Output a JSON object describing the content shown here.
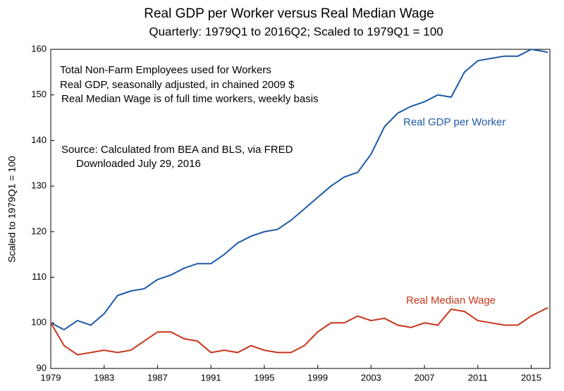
{
  "chart_data": {
    "type": "line",
    "title": "Real GDP per Worker versus Real Median Wage",
    "subtitle": "Quarterly:  1979Q1 to 2016Q2; Scaled to 1979Q1 = 100",
    "y_label": "Scaled to 1979Q1 = 100",
    "annotations": [
      "Total Non-Farm Employees used for Workers",
      "Real GDP, seasonally adjusted, in chained 2009 $",
      "Real Median Wage is of full time workers, weekly basis",
      "Source:  Calculated from BEA and BLS, via FRED",
      "Downloaded July 29, 2016"
    ],
    "x": [
      1979,
      1980,
      1981,
      1982,
      1983,
      1984,
      1985,
      1986,
      1987,
      1988,
      1989,
      1990,
      1991,
      1992,
      1993,
      1994,
      1995,
      1996,
      1997,
      1998,
      1999,
      2000,
      2001,
      2002,
      2003,
      2004,
      2005,
      2006,
      2007,
      2008,
      2009,
      2010,
      2011,
      2012,
      2013,
      2014,
      2015,
      2016,
      2016.25
    ],
    "series": [
      {
        "name": "Real GDP per Worker",
        "color": "#1f5aa6",
        "values": [
          100,
          98.5,
          100.5,
          99.5,
          102,
          106,
          107,
          107.5,
          109.5,
          110.5,
          112,
          113,
          113,
          115,
          117.5,
          119,
          120,
          120.5,
          122.5,
          125,
          127.5,
          130,
          132,
          133,
          137,
          143,
          146,
          147.5,
          148.5,
          150,
          149.5,
          155,
          157.5,
          158,
          158.5,
          158.5,
          160,
          159.5,
          159.3
        ]
      },
      {
        "name": "Real Median Wage",
        "color": "#c8361b",
        "values": [
          100,
          95,
          93,
          93.5,
          94,
          93.5,
          94,
          96,
          98,
          98,
          96.5,
          96,
          93.5,
          94,
          93.5,
          95,
          94,
          93.5,
          93.5,
          95,
          98,
          100,
          100,
          101.5,
          100.5,
          101,
          99.5,
          99,
          100,
          99.5,
          103,
          102.5,
          100.5,
          100,
          99.5,
          99.5,
          101.5,
          103,
          103.3
        ]
      }
    ],
    "xlim": [
      1979,
      2016.4
    ],
    "xticks": [
      1979,
      1983,
      1987,
      1991,
      1995,
      1999,
      2003,
      2007,
      2011,
      2015
    ],
    "ylim": [
      90,
      160
    ],
    "yticks": [
      90,
      100,
      110,
      120,
      130,
      140,
      150,
      160
    ]
  }
}
